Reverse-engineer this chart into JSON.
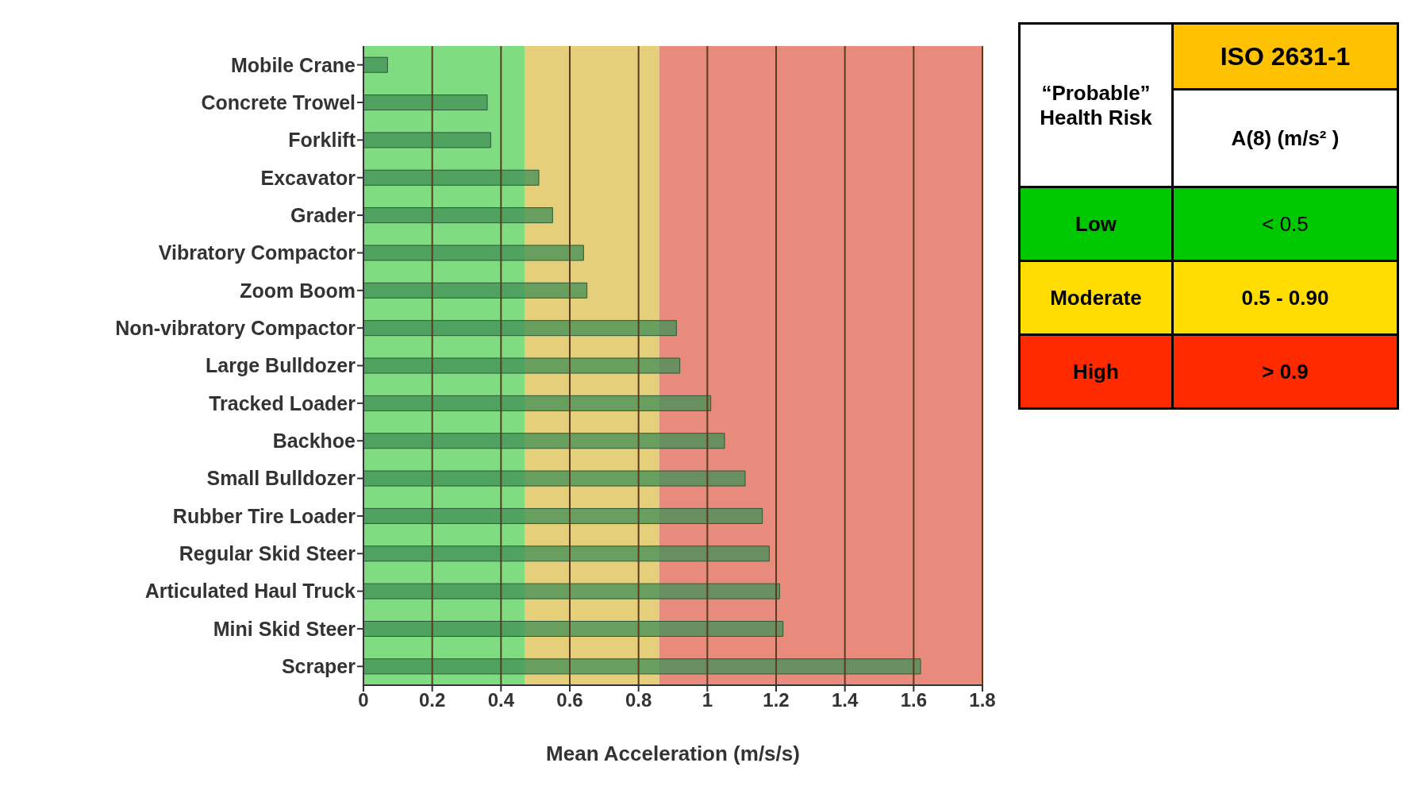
{
  "chart_data": {
    "type": "bar",
    "orientation": "horizontal",
    "xlabel": "Mean Acceleration (m/s/s)",
    "categories": [
      "Mobile Crane",
      "Concrete Trowel",
      "Forklift",
      "Excavator",
      "Grader",
      "Vibratory Compactor",
      "Zoom Boom",
      "Non-vibratory Compactor",
      "Large Bulldozer",
      "Tracked Loader",
      "Backhoe",
      "Small Bulldozer",
      "Rubber Tire Loader",
      "Regular Skid Steer",
      "Articulated Haul Truck",
      "Mini Skid Steer",
      "Scraper"
    ],
    "values": [
      0.07,
      0.36,
      0.37,
      0.51,
      0.55,
      0.64,
      0.65,
      0.91,
      0.92,
      1.01,
      1.05,
      1.11,
      1.16,
      1.18,
      1.21,
      1.22,
      1.62
    ],
    "color": "#3f8f55",
    "xlim": [
      0,
      1.8
    ],
    "xticks": [
      0,
      0.2,
      0.4,
      0.6,
      0.8,
      1,
      1.2,
      1.4,
      1.6,
      1.8
    ],
    "grid": "x",
    "bands": [
      {
        "axis": "x",
        "from": 0,
        "to": 0.47,
        "color": "#80dc80"
      },
      {
        "axis": "x",
        "from": 0.47,
        "to": 0.86,
        "color": "#e6cf7a"
      },
      {
        "axis": "x",
        "from": 0.86,
        "to": 1.8,
        "color": "#e88b7c"
      }
    ],
    "annotations": [
      "“Probable” Health Risk",
      "ISO 2631-1",
      "A(8) (m/s² )",
      "Low",
      "< 0.5",
      "Moderate",
      "0.5 - 0.90",
      "High",
      "> 0.9"
    ]
  }
}
